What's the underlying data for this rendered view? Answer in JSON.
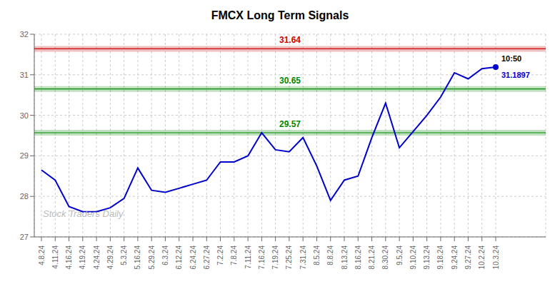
{
  "chart_data": {
    "type": "line",
    "title": "FMCX Long Term Signals",
    "categories": [
      "4.8.24",
      "4.11.24",
      "4.16.24",
      "4.19.24",
      "4.24.24",
      "4.29.24",
      "5.3.24",
      "5.16.24",
      "5.29.24",
      "6.3.24",
      "6.12.24",
      "6.24.24",
      "6.27.24",
      "7.2.24",
      "7.8.24",
      "7.11.24",
      "7.16.24",
      "7.19.24",
      "7.25.24",
      "7.31.24",
      "8.5.24",
      "8.8.24",
      "8.13.24",
      "8.16.24",
      "8.21.24",
      "8.30.24",
      "9.5.24",
      "9.10.24",
      "9.13.24",
      "9.18.24",
      "9.24.24",
      "9.27.24",
      "10.2.24",
      "10.3.24"
    ],
    "values": [
      28.65,
      28.4,
      27.75,
      27.62,
      27.62,
      27.72,
      27.95,
      28.7,
      28.15,
      28.1,
      28.2,
      28.3,
      28.4,
      28.85,
      28.85,
      29.0,
      29.57,
      29.15,
      29.1,
      29.45,
      28.75,
      27.9,
      28.4,
      28.5,
      29.45,
      30.3,
      29.2,
      29.6,
      30.0,
      30.45,
      31.05,
      30.9,
      31.15,
      31.1897
    ],
    "color": "#0000cc",
    "ylim": [
      27,
      32
    ],
    "yticks": [
      27,
      28,
      29,
      30,
      31,
      32
    ],
    "grid": true,
    "reference_lines": [
      {
        "value": 31.64,
        "label": "31.64",
        "color": "#cc0000"
      },
      {
        "value": 30.65,
        "label": "30.65",
        "color": "#008800"
      },
      {
        "value": 29.57,
        "label": "29.57",
        "color": "#008800"
      }
    ],
    "last_label": "10:50",
    "watermark": "Stock Traders Daily"
  }
}
